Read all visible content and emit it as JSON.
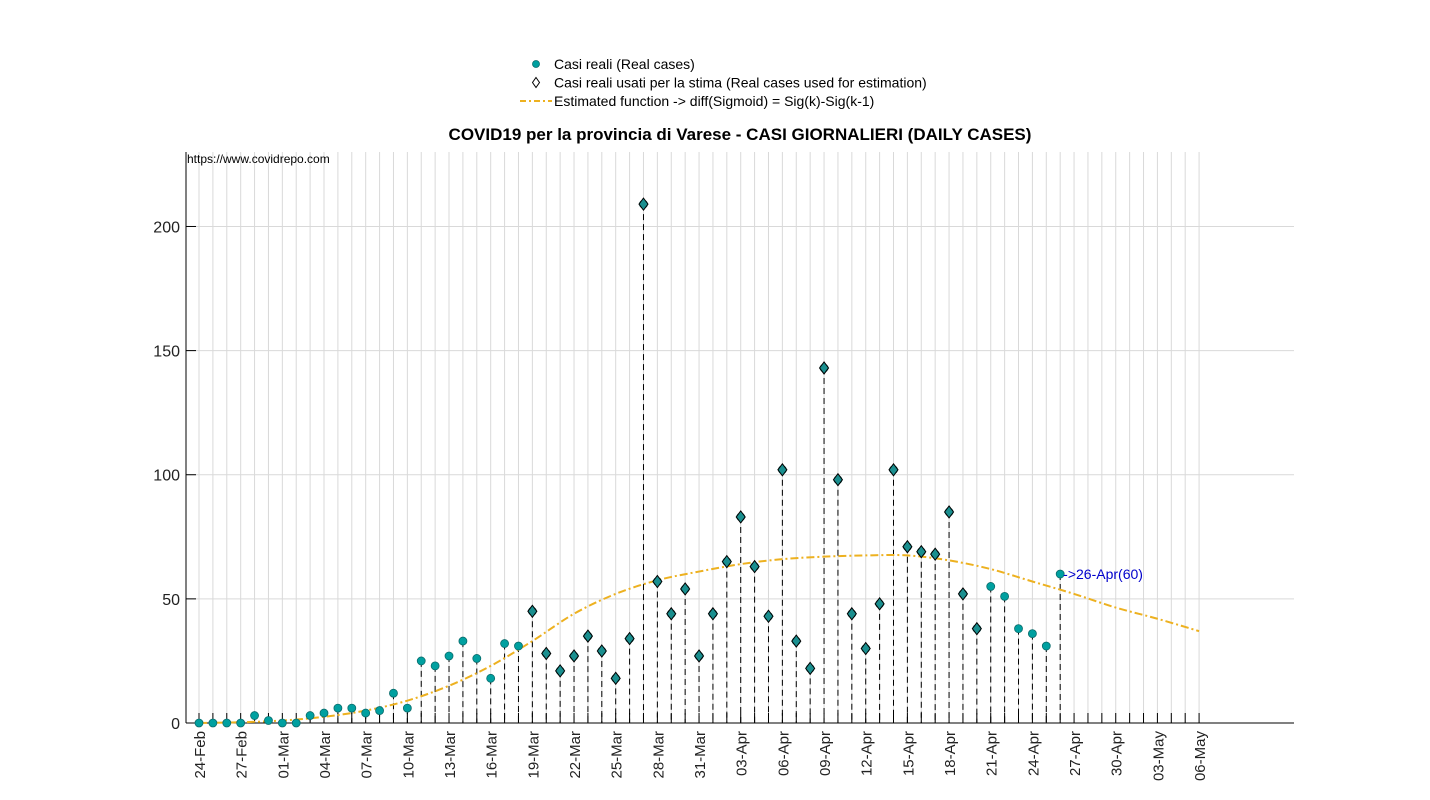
{
  "chart_data": {
    "type": "scatter",
    "title": "COVID19 per la provincia di Varese - CASI GIORNALIERI (DAILY CASES)",
    "source_label": "https://www.covidrepo.com",
    "xlabel": "",
    "ylabel": "",
    "ylim": [
      0,
      230
    ],
    "yticks": [
      0,
      50,
      100,
      150,
      200
    ],
    "x_start_date": "24-Feb",
    "x_range_days": [
      0,
      72
    ],
    "xticks_labels": [
      "24-Feb",
      "27-Feb",
      "01-Mar",
      "04-Mar",
      "07-Mar",
      "10-Mar",
      "13-Mar",
      "16-Mar",
      "19-Mar",
      "22-Mar",
      "25-Mar",
      "28-Mar",
      "31-Mar",
      "03-Apr",
      "06-Apr",
      "09-Apr",
      "12-Apr",
      "15-Apr",
      "18-Apr",
      "21-Apr",
      "24-Apr",
      "27-Apr",
      "30-Apr",
      "03-May",
      "06-May"
    ],
    "grid": true,
    "legend_position": "top-center",
    "legend": [
      {
        "label": "Casi reali (Real cases)",
        "marker": "dot"
      },
      {
        "label": "Casi reali usati per la stima (Real cases used for estimation)",
        "marker": "diamond"
      },
      {
        "label": "Estimated function -> diff(Sigmoid) = Sig(k)-Sig(k-1)",
        "marker": "dashed-line"
      }
    ],
    "series": [
      {
        "name": "Casi reali (Real cases)",
        "x": [
          "24-Feb",
          "25-Feb",
          "26-Feb",
          "27-Feb",
          "28-Feb",
          "29-Feb",
          "01-Mar",
          "02-Mar",
          "03-Mar",
          "04-Mar",
          "05-Mar",
          "06-Mar",
          "07-Mar",
          "08-Mar",
          "09-Mar",
          "10-Mar",
          "11-Mar",
          "12-Mar",
          "13-Mar",
          "14-Mar",
          "15-Mar",
          "16-Mar",
          "17-Mar",
          "18-Mar",
          "19-Mar",
          "20-Mar",
          "21-Mar",
          "22-Mar",
          "23-Mar",
          "24-Mar",
          "25-Mar",
          "26-Mar",
          "27-Mar",
          "28-Mar",
          "29-Mar",
          "30-Mar",
          "31-Mar",
          "01-Apr",
          "02-Apr",
          "03-Apr",
          "04-Apr",
          "05-Apr",
          "06-Apr",
          "07-Apr",
          "08-Apr",
          "09-Apr",
          "10-Apr",
          "11-Apr",
          "12-Apr",
          "13-Apr",
          "14-Apr",
          "15-Apr",
          "16-Apr",
          "17-Apr",
          "18-Apr",
          "19-Apr",
          "20-Apr",
          "21-Apr",
          "22-Apr",
          "23-Apr",
          "24-Apr",
          "25-Apr",
          "26-Apr"
        ],
        "values": [
          0,
          0,
          0,
          0,
          3,
          1,
          0,
          0,
          3,
          4,
          6,
          6,
          4,
          5,
          12,
          6,
          25,
          23,
          27,
          33,
          26,
          18,
          32,
          31,
          45,
          28,
          21,
          27,
          35,
          29,
          18,
          34,
          209,
          57,
          44,
          54,
          27,
          44,
          65,
          83,
          63,
          43,
          102,
          33,
          22,
          143,
          98,
          44,
          30,
          48,
          102,
          71,
          69,
          68,
          85,
          52,
          38,
          55,
          51,
          38,
          36,
          31,
          60
        ]
      },
      {
        "name": "Casi reali usati per la stima (Real cases used for estimation)",
        "x": [
          "19-Mar",
          "20-Mar",
          "21-Mar",
          "22-Mar",
          "23-Mar",
          "24-Mar",
          "25-Mar",
          "26-Mar",
          "27-Mar",
          "28-Mar",
          "29-Mar",
          "30-Mar",
          "31-Mar",
          "01-Apr",
          "02-Apr",
          "03-Apr",
          "04-Apr",
          "05-Apr",
          "06-Apr",
          "07-Apr",
          "08-Apr",
          "09-Apr",
          "10-Apr",
          "11-Apr",
          "12-Apr",
          "13-Apr",
          "14-Apr",
          "15-Apr",
          "16-Apr",
          "17-Apr",
          "18-Apr",
          "19-Apr",
          "20-Apr"
        ],
        "values": [
          45,
          28,
          21,
          27,
          35,
          29,
          18,
          34,
          209,
          57,
          44,
          54,
          27,
          44,
          65,
          83,
          63,
          43,
          102,
          33,
          22,
          143,
          98,
          44,
          30,
          48,
          102,
          71,
          69,
          68,
          85,
          52,
          38
        ]
      },
      {
        "name": "Estimated function -> diff(Sigmoid) = Sig(k)-Sig(k-1)",
        "x": [
          "24-Feb",
          "27-Feb",
          "01-Mar",
          "04-Mar",
          "07-Mar",
          "10-Mar",
          "13-Mar",
          "16-Mar",
          "19-Mar",
          "22-Mar",
          "25-Mar",
          "28-Mar",
          "31-Mar",
          "03-Apr",
          "06-Apr",
          "09-Apr",
          "12-Apr",
          "15-Apr",
          "18-Apr",
          "21-Apr",
          "24-Apr",
          "27-Apr",
          "30-Apr",
          "03-May",
          "06-May"
        ],
        "values": [
          0,
          0.3,
          1,
          2.5,
          5,
          9,
          15,
          23,
          33,
          44,
          52,
          57.5,
          61,
          64,
          66,
          67,
          67.5,
          67.5,
          65.5,
          62,
          57,
          52,
          46.5,
          42,
          37
        ]
      }
    ],
    "annotations": [
      {
        "x": "26-Apr",
        "y": 60,
        "text": "->26-Apr(60)",
        "color": "#0000cc"
      }
    ],
    "colors": {
      "real_cases": "#00a0a0",
      "estimation_marker": "#1a8f8f",
      "fit_line": "#edb120",
      "annotation": "#0000cc"
    }
  }
}
